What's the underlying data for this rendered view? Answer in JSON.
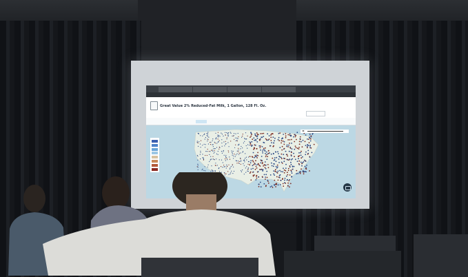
{
  "browser": {
    "tabs": [
      "",
      "",
      "",
      ""
    ],
    "url": ""
  },
  "page": {
    "back_link": "",
    "product_title": "Great Value 2% Reduced-Fat Milk, 1 Gallon, 128 Fl. Oz.",
    "sub_link": "",
    "filters_label": "",
    "upload_label": "",
    "date_from": "",
    "date_to": "",
    "store_chip": ""
  },
  "map": {
    "legend_colors": [
      "#3c5fb0",
      "#4f83c9",
      "#6aa5d8",
      "#9cc7e4",
      "#d7c2a0",
      "#c98a5a",
      "#b35a3a",
      "#8c2a22"
    ],
    "playback": "play-icon",
    "chat": "chat-icon"
  },
  "colors": {
    "screen_frame": "#cfd3d7",
    "map_land": "#e9efe6",
    "map_water": "#bcd8e4",
    "dot_blue": "#2c4a86",
    "dot_red": "#7a2a20"
  }
}
